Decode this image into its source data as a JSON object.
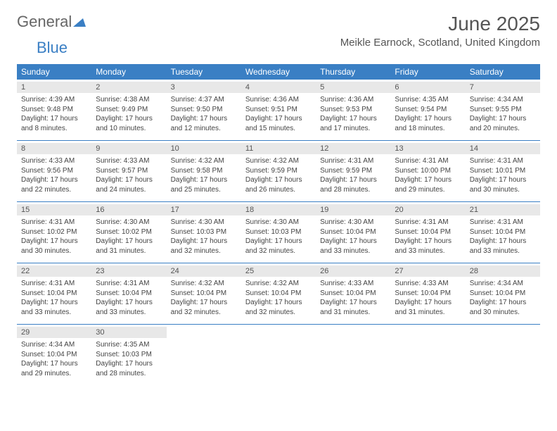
{
  "logo": {
    "text1": "General",
    "text2": "Blue"
  },
  "title": "June 2025",
  "location": "Meikle Earnock, Scotland, United Kingdom",
  "header_bg": "#3a7fc4",
  "daynum_bg": "#e8e8e8",
  "weekdays": [
    "Sunday",
    "Monday",
    "Tuesday",
    "Wednesday",
    "Thursday",
    "Friday",
    "Saturday"
  ],
  "weeks": [
    [
      {
        "n": "1",
        "sr": "4:39 AM",
        "ss": "9:48 PM",
        "dl": "17 hours and 8 minutes."
      },
      {
        "n": "2",
        "sr": "4:38 AM",
        "ss": "9:49 PM",
        "dl": "17 hours and 10 minutes."
      },
      {
        "n": "3",
        "sr": "4:37 AM",
        "ss": "9:50 PM",
        "dl": "17 hours and 12 minutes."
      },
      {
        "n": "4",
        "sr": "4:36 AM",
        "ss": "9:51 PM",
        "dl": "17 hours and 15 minutes."
      },
      {
        "n": "5",
        "sr": "4:36 AM",
        "ss": "9:53 PM",
        "dl": "17 hours and 17 minutes."
      },
      {
        "n": "6",
        "sr": "4:35 AM",
        "ss": "9:54 PM",
        "dl": "17 hours and 18 minutes."
      },
      {
        "n": "7",
        "sr": "4:34 AM",
        "ss": "9:55 PM",
        "dl": "17 hours and 20 minutes."
      }
    ],
    [
      {
        "n": "8",
        "sr": "4:33 AM",
        "ss": "9:56 PM",
        "dl": "17 hours and 22 minutes."
      },
      {
        "n": "9",
        "sr": "4:33 AM",
        "ss": "9:57 PM",
        "dl": "17 hours and 24 minutes."
      },
      {
        "n": "10",
        "sr": "4:32 AM",
        "ss": "9:58 PM",
        "dl": "17 hours and 25 minutes."
      },
      {
        "n": "11",
        "sr": "4:32 AM",
        "ss": "9:59 PM",
        "dl": "17 hours and 26 minutes."
      },
      {
        "n": "12",
        "sr": "4:31 AM",
        "ss": "9:59 PM",
        "dl": "17 hours and 28 minutes."
      },
      {
        "n": "13",
        "sr": "4:31 AM",
        "ss": "10:00 PM",
        "dl": "17 hours and 29 minutes."
      },
      {
        "n": "14",
        "sr": "4:31 AM",
        "ss": "10:01 PM",
        "dl": "17 hours and 30 minutes."
      }
    ],
    [
      {
        "n": "15",
        "sr": "4:31 AM",
        "ss": "10:02 PM",
        "dl": "17 hours and 30 minutes."
      },
      {
        "n": "16",
        "sr": "4:30 AM",
        "ss": "10:02 PM",
        "dl": "17 hours and 31 minutes."
      },
      {
        "n": "17",
        "sr": "4:30 AM",
        "ss": "10:03 PM",
        "dl": "17 hours and 32 minutes."
      },
      {
        "n": "18",
        "sr": "4:30 AM",
        "ss": "10:03 PM",
        "dl": "17 hours and 32 minutes."
      },
      {
        "n": "19",
        "sr": "4:30 AM",
        "ss": "10:04 PM",
        "dl": "17 hours and 33 minutes."
      },
      {
        "n": "20",
        "sr": "4:31 AM",
        "ss": "10:04 PM",
        "dl": "17 hours and 33 minutes."
      },
      {
        "n": "21",
        "sr": "4:31 AM",
        "ss": "10:04 PM",
        "dl": "17 hours and 33 minutes."
      }
    ],
    [
      {
        "n": "22",
        "sr": "4:31 AM",
        "ss": "10:04 PM",
        "dl": "17 hours and 33 minutes."
      },
      {
        "n": "23",
        "sr": "4:31 AM",
        "ss": "10:04 PM",
        "dl": "17 hours and 33 minutes."
      },
      {
        "n": "24",
        "sr": "4:32 AM",
        "ss": "10:04 PM",
        "dl": "17 hours and 32 minutes."
      },
      {
        "n": "25",
        "sr": "4:32 AM",
        "ss": "10:04 PM",
        "dl": "17 hours and 32 minutes."
      },
      {
        "n": "26",
        "sr": "4:33 AM",
        "ss": "10:04 PM",
        "dl": "17 hours and 31 minutes."
      },
      {
        "n": "27",
        "sr": "4:33 AM",
        "ss": "10:04 PM",
        "dl": "17 hours and 31 minutes."
      },
      {
        "n": "28",
        "sr": "4:34 AM",
        "ss": "10:04 PM",
        "dl": "17 hours and 30 minutes."
      }
    ],
    [
      {
        "n": "29",
        "sr": "4:34 AM",
        "ss": "10:04 PM",
        "dl": "17 hours and 29 minutes."
      },
      {
        "n": "30",
        "sr": "4:35 AM",
        "ss": "10:03 PM",
        "dl": "17 hours and 28 minutes."
      },
      null,
      null,
      null,
      null,
      null
    ]
  ],
  "labels": {
    "sunrise": "Sunrise: ",
    "sunset": "Sunset: ",
    "daylight": "Daylight: "
  }
}
